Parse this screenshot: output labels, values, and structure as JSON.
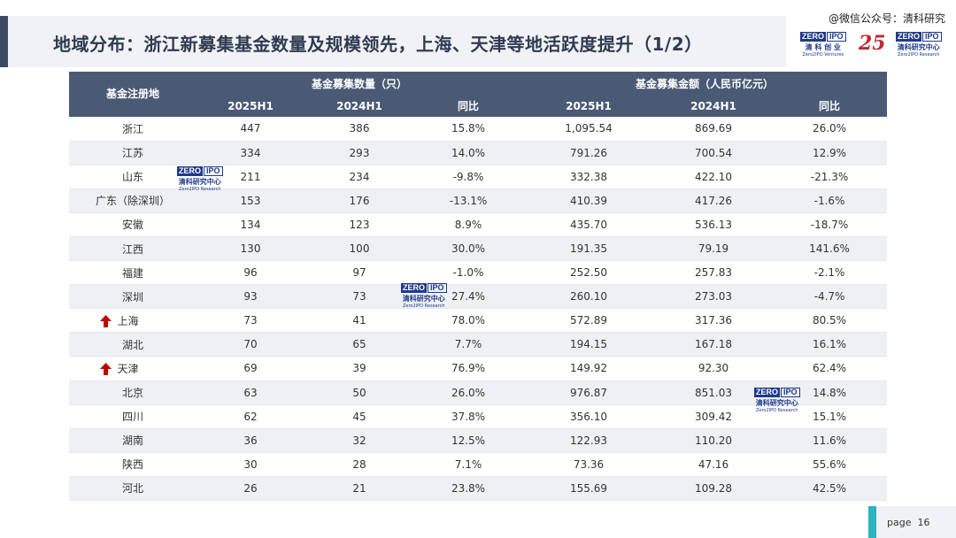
{
  "header": {
    "title": "地域分布：浙江新募集基金数量及规模领先，上海、天津等地活跃度提升（1/2）",
    "watermark": "@微信公众号：清科研究"
  },
  "logos": {
    "zero_left": "ZERO",
    "ipo": "IPO",
    "venture_cn": "清 科 创 业",
    "venture_en": "Zero2IPO Ventures",
    "anniv": "25",
    "research_cn": "清科研究中心",
    "research_en": "Zero2IPO Research"
  },
  "table": {
    "header_row1": {
      "region": "基金注册地",
      "count_group": "基金募集数量（只）",
      "amount_group": "基金募集金额（人民币亿元）"
    },
    "header_row2": [
      "2025H1",
      "2024H1",
      "同比",
      "2025H1",
      "2024H1",
      "同比"
    ],
    "rows": [
      {
        "region": "浙江",
        "c25": "447",
        "c24": "386",
        "cyoy": "15.8%",
        "a25": "1,095.54",
        "a24": "869.69",
        "ayoy": "26.0%",
        "up": false
      },
      {
        "region": "江苏",
        "c25": "334",
        "c24": "293",
        "cyoy": "14.0%",
        "a25": "791.26",
        "a24": "700.54",
        "ayoy": "12.9%",
        "up": false
      },
      {
        "region": "山东",
        "c25": "211",
        "c24": "234",
        "cyoy": "-9.8%",
        "a25": "332.38",
        "a24": "422.10",
        "ayoy": "-21.3%",
        "up": false
      },
      {
        "region": "广东（除深圳）",
        "c25": "153",
        "c24": "176",
        "cyoy": "-13.1%",
        "a25": "410.39",
        "a24": "417.26",
        "ayoy": "-1.6%",
        "up": false
      },
      {
        "region": "安徽",
        "c25": "134",
        "c24": "123",
        "cyoy": "8.9%",
        "a25": "435.70",
        "a24": "536.13",
        "ayoy": "-18.7%",
        "up": false
      },
      {
        "region": "江西",
        "c25": "130",
        "c24": "100",
        "cyoy": "30.0%",
        "a25": "191.35",
        "a24": "79.19",
        "ayoy": "141.6%",
        "up": false
      },
      {
        "region": "福建",
        "c25": "96",
        "c24": "97",
        "cyoy": "-1.0%",
        "a25": "252.50",
        "a24": "257.83",
        "ayoy": "-2.1%",
        "up": false
      },
      {
        "region": "深圳",
        "c25": "93",
        "c24": "73",
        "cyoy": "27.4%",
        "a25": "260.10",
        "a24": "273.03",
        "ayoy": "-4.7%",
        "up": false
      },
      {
        "region": "上海",
        "c25": "73",
        "c24": "41",
        "cyoy": "78.0%",
        "a25": "572.89",
        "a24": "317.36",
        "ayoy": "80.5%",
        "up": true
      },
      {
        "region": "湖北",
        "c25": "70",
        "c24": "65",
        "cyoy": "7.7%",
        "a25": "194.15",
        "a24": "167.18",
        "ayoy": "16.1%",
        "up": false
      },
      {
        "region": "天津",
        "c25": "69",
        "c24": "39",
        "cyoy": "76.9%",
        "a25": "149.92",
        "a24": "92.30",
        "ayoy": "62.4%",
        "up": true
      },
      {
        "region": "北京",
        "c25": "63",
        "c24": "50",
        "cyoy": "26.0%",
        "a25": "976.87",
        "a24": "851.03",
        "ayoy": "14.8%",
        "up": false
      },
      {
        "region": "四川",
        "c25": "62",
        "c24": "45",
        "cyoy": "37.8%",
        "a25": "356.10",
        "a24": "309.42",
        "ayoy": "15.1%",
        "up": false
      },
      {
        "region": "湖南",
        "c25": "36",
        "c24": "32",
        "cyoy": "12.5%",
        "a25": "122.93",
        "a24": "110.20",
        "ayoy": "11.6%",
        "up": false
      },
      {
        "region": "陕西",
        "c25": "30",
        "c24": "28",
        "cyoy": "7.1%",
        "a25": "73.36",
        "a24": "47.16",
        "ayoy": "55.6%",
        "up": false
      },
      {
        "region": "河北",
        "c25": "26",
        "c24": "21",
        "cyoy": "23.8%",
        "a25": "155.69",
        "a24": "109.28",
        "ayoy": "42.5%",
        "up": false
      }
    ]
  },
  "footer": {
    "page_label": "page",
    "page_number": "16"
  },
  "colors": {
    "header_bg": "#4a5a75",
    "title_color": "#2f3b52",
    "arrow_red": "#c00000",
    "page_accent": "#2bb3c0"
  }
}
